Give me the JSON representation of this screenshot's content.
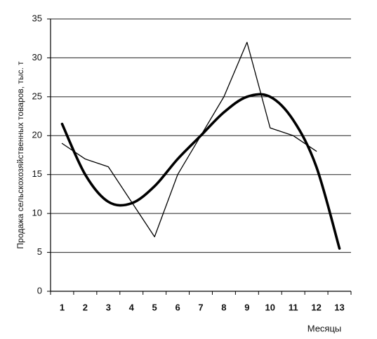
{
  "chart_data": {
    "type": "line",
    "y_label": "Продажа сельскохозяйственных товаров, тыс. т",
    "x_label": "Месяцы",
    "categories": [
      "1",
      "2",
      "3",
      "4",
      "5",
      "6",
      "7",
      "8",
      "9",
      "10",
      "11",
      "12",
      "13"
    ],
    "series": [
      {
        "color": "#000000",
        "values": [
          19,
          17,
          16,
          11.5,
          7,
          15,
          20,
          25,
          32,
          21,
          20,
          18,
          null
        ]
      },
      {
        "color": "#000000",
        "values": [
          21.5,
          15,
          11.5,
          11.3,
          13.5,
          17,
          20,
          23,
          25,
          25,
          22,
          16,
          5.5
        ]
      }
    ],
    "ylim": [
      0,
      35
    ],
    "yticks": [
      0,
      5,
      10,
      15,
      20,
      25,
      30,
      35
    ],
    "grid": true
  }
}
